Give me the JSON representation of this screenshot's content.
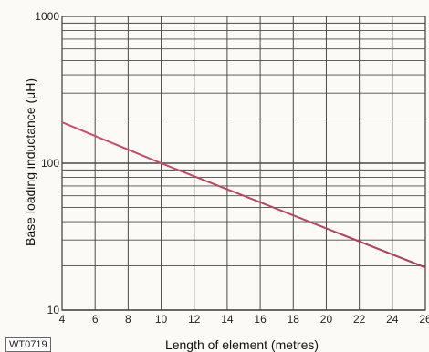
{
  "figure_code": "WT0719",
  "colors": {
    "grid": "#4a4a4a",
    "line_start": "#d24a6c",
    "line_end": "#a8405a"
  },
  "chart_data": {
    "type": "line",
    "xlabel": "Length of element (metres)",
    "ylabel": "Base loading inductance (μH)",
    "xlim": [
      4,
      26
    ],
    "ylim": [
      10,
      1000
    ],
    "yscale": "log",
    "grid": true,
    "x_ticks": [
      "4",
      "6",
      "8",
      "10",
      "12",
      "14",
      "16",
      "18",
      "20",
      "22",
      "24",
      "26"
    ],
    "y_ticks": [
      "10",
      "100",
      "1000"
    ],
    "series": [
      {
        "x": [
          4,
          10,
          26
        ],
        "y": [
          190,
          100,
          19.5
        ]
      }
    ]
  }
}
